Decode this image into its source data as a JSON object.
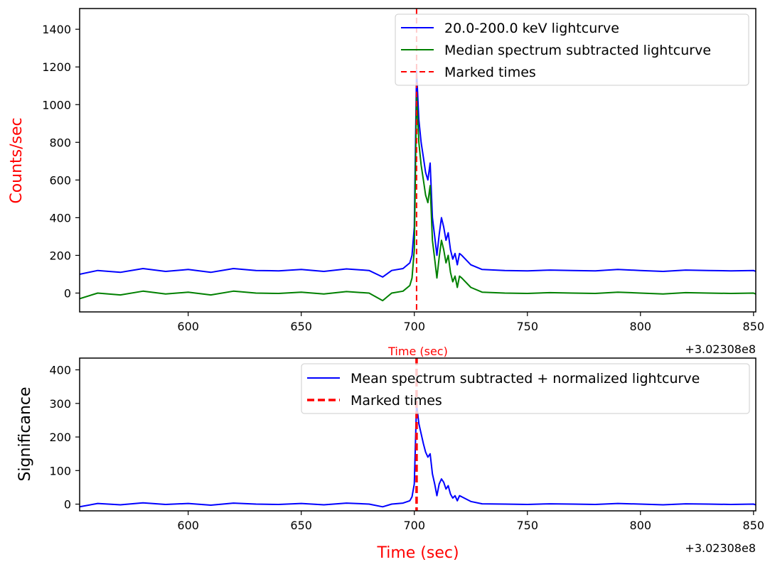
{
  "chart_data": [
    {
      "type": "line",
      "title": "",
      "xlabel": "Time (sec)",
      "xlabel_color": "#ff0000",
      "ylabel": "Counts/sec",
      "ylabel_color": "#ff0000",
      "x_offset_label": "+3.02308e8",
      "xlim": [
        552,
        851
      ],
      "ylim": [
        -100,
        1510
      ],
      "x_ticks": [
        600,
        650,
        700,
        750,
        800,
        850
      ],
      "y_ticks": [
        0,
        200,
        400,
        600,
        800,
        1000,
        1200,
        1400
      ],
      "legend_position": "top-right",
      "marked_time": 701,
      "series": [
        {
          "name": "20.0-200.0 keV lightcurve",
          "color": "#0000ff",
          "x": [
            552,
            560,
            570,
            580,
            590,
            600,
            610,
            620,
            630,
            640,
            650,
            660,
            670,
            680,
            686,
            690,
            695,
            698,
            699,
            700,
            701,
            702,
            703,
            704,
            705,
            706,
            707,
            708,
            709,
            710,
            711,
            712,
            713,
            714,
            715,
            716,
            717,
            718,
            719,
            720,
            721,
            725,
            730,
            740,
            750,
            760,
            770,
            780,
            790,
            800,
            810,
            820,
            830,
            840,
            850,
            851
          ],
          "y": [
            100,
            120,
            110,
            130,
            115,
            125,
            110,
            130,
            120,
            118,
            125,
            115,
            128,
            120,
            85,
            120,
            130,
            160,
            200,
            350,
            1180,
            920,
            800,
            720,
            640,
            600,
            690,
            400,
            300,
            200,
            310,
            400,
            350,
            280,
            320,
            230,
            180,
            210,
            150,
            210,
            200,
            150,
            125,
            120,
            118,
            122,
            120,
            118,
            125,
            120,
            115,
            122,
            120,
            118,
            120,
            115
          ]
        },
        {
          "name": "Median spectrum subtracted lightcurve",
          "color": "#008000",
          "x": [
            552,
            560,
            570,
            580,
            590,
            600,
            610,
            620,
            630,
            640,
            650,
            660,
            670,
            680,
            686,
            690,
            695,
            698,
            699,
            700,
            701,
            702,
            703,
            704,
            705,
            706,
            707,
            708,
            709,
            710,
            711,
            712,
            713,
            714,
            715,
            716,
            717,
            718,
            719,
            720,
            721,
            725,
            730,
            740,
            750,
            760,
            770,
            780,
            790,
            800,
            810,
            820,
            830,
            840,
            850,
            851
          ],
          "y": [
            -30,
            0,
            -10,
            10,
            -5,
            5,
            -10,
            10,
            0,
            -2,
            5,
            -5,
            8,
            0,
            -40,
            0,
            10,
            40,
            80,
            230,
            1060,
            800,
            680,
            600,
            520,
            480,
            570,
            280,
            180,
            80,
            190,
            280,
            230,
            160,
            200,
            110,
            60,
            90,
            30,
            90,
            80,
            30,
            5,
            0,
            -2,
            2,
            0,
            -2,
            5,
            0,
            -5,
            2,
            0,
            -2,
            0,
            -5
          ]
        },
        {
          "name": "Marked times",
          "color": "#ff0000",
          "style": "dashed",
          "type": "vline",
          "x": [
            701
          ]
        }
      ]
    },
    {
      "type": "line",
      "title": "",
      "xlabel": "Time (sec)",
      "xlabel_color": "#ff0000",
      "ylabel": "Significance",
      "ylabel_color": "#000000",
      "x_offset_label": "+3.02308e8",
      "xlim": [
        552,
        851
      ],
      "ylim": [
        -20,
        435
      ],
      "x_ticks": [
        600,
        650,
        700,
        750,
        800,
        850
      ],
      "y_ticks": [
        0,
        100,
        200,
        300,
        400
      ],
      "legend_position": "top-right",
      "marked_time": 701,
      "series": [
        {
          "name": "Mean spectrum subtracted + normalized lightcurve",
          "color": "#0000ff",
          "x": [
            552,
            560,
            570,
            580,
            590,
            600,
            610,
            620,
            630,
            640,
            650,
            660,
            670,
            680,
            686,
            690,
            695,
            698,
            699,
            700,
            701,
            702,
            703,
            704,
            705,
            706,
            707,
            708,
            709,
            710,
            711,
            712,
            713,
            714,
            715,
            716,
            717,
            718,
            719,
            720,
            721,
            725,
            730,
            740,
            750,
            760,
            770,
            780,
            790,
            800,
            810,
            820,
            830,
            840,
            850,
            851
          ],
          "y": [
            -8,
            2,
            -2,
            4,
            -1,
            2,
            -3,
            3,
            0,
            -1,
            2,
            -2,
            3,
            0,
            -8,
            0,
            3,
            10,
            22,
            60,
            300,
            240,
            210,
            180,
            155,
            140,
            150,
            90,
            60,
            25,
            60,
            75,
            65,
            45,
            55,
            30,
            18,
            25,
            10,
            25,
            22,
            8,
            1,
            0,
            -1,
            1,
            0,
            -1,
            2,
            0,
            -2,
            1,
            0,
            -1,
            0,
            -2
          ]
        },
        {
          "name": "Marked times",
          "color": "#ff0000",
          "style": "dashed",
          "type": "vline",
          "x": [
            701
          ]
        }
      ]
    }
  ]
}
